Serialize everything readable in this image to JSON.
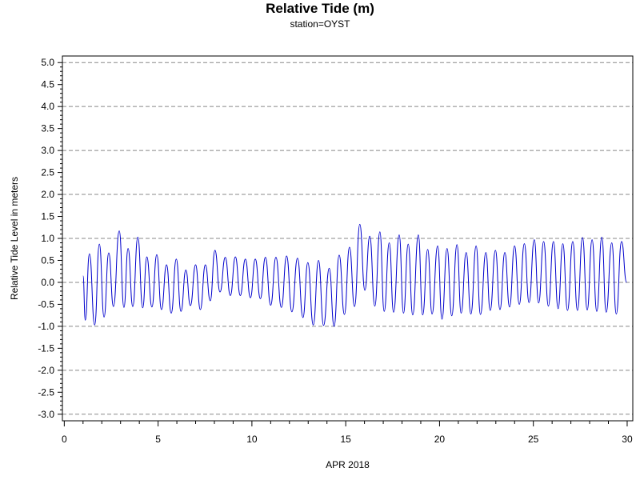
{
  "title": "Relative Tide (m)",
  "subtitle": "station=OYST",
  "chart_data": {
    "type": "line",
    "title": "Relative Tide (m)",
    "subtitle": "station=OYST",
    "xlabel": "APR 2018",
    "ylabel": "Relative Tide Level in meters",
    "xlim": [
      -0.1,
      30.3
    ],
    "ylim": [
      -3.15,
      5.15
    ],
    "x_ticks": [
      0,
      5,
      10,
      15,
      20,
      25,
      30
    ],
    "x_tick_labels": [
      "0",
      "5",
      "10",
      "15",
      "20",
      "25",
      "30"
    ],
    "x_minor_step": 1,
    "y_ticks": [
      5.0,
      4.5,
      4.0,
      3.5,
      3.0,
      2.5,
      2.0,
      1.5,
      1.0,
      0.5,
      0.0,
      -0.5,
      -1.0,
      -1.5,
      -2.0,
      -2.5,
      -3.0
    ],
    "y_tick_labels": [
      "5.0",
      "4.5",
      "4.0",
      "3.5",
      "3.0",
      "2.5",
      "2.0",
      "1.5",
      "1.0",
      "0.5",
      "0.0",
      "-0.5",
      "-1.0",
      "-1.5",
      "-2.0",
      "-2.5",
      "-3.0"
    ],
    "y_minor_step": 0.1,
    "grid": "dashed horizontal at integer levels",
    "line_color": "#0000cc",
    "grid_color": "#888888",
    "series": [
      {
        "points": [
          [
            1.0,
            0.15
          ],
          [
            1.12,
            -0.86
          ],
          [
            1.34,
            0.65
          ],
          [
            1.62,
            -0.97
          ],
          [
            1.87,
            0.87
          ],
          [
            2.12,
            -0.79
          ],
          [
            2.37,
            0.67
          ],
          [
            2.62,
            -0.55
          ],
          [
            2.93,
            1.17
          ],
          [
            3.18,
            -0.57
          ],
          [
            3.4,
            0.77
          ],
          [
            3.65,
            -0.55
          ],
          [
            3.92,
            1.03
          ],
          [
            4.18,
            -0.58
          ],
          [
            4.4,
            0.58
          ],
          [
            4.67,
            -0.56
          ],
          [
            4.93,
            0.63
          ],
          [
            5.18,
            -0.62
          ],
          [
            5.45,
            0.4
          ],
          [
            5.7,
            -0.7
          ],
          [
            5.97,
            0.53
          ],
          [
            6.22,
            -0.66
          ],
          [
            6.48,
            0.28
          ],
          [
            6.72,
            -0.53
          ],
          [
            7.0,
            0.4
          ],
          [
            7.25,
            -0.62
          ],
          [
            7.52,
            0.4
          ],
          [
            7.78,
            -0.42
          ],
          [
            8.03,
            0.73
          ],
          [
            8.3,
            -0.22
          ],
          [
            8.58,
            0.57
          ],
          [
            8.85,
            -0.3
          ],
          [
            9.12,
            0.58
          ],
          [
            9.38,
            -0.3
          ],
          [
            9.65,
            0.53
          ],
          [
            9.92,
            -0.35
          ],
          [
            10.18,
            0.53
          ],
          [
            10.45,
            -0.37
          ],
          [
            10.72,
            0.57
          ],
          [
            11.0,
            -0.52
          ],
          [
            11.28,
            0.57
          ],
          [
            11.57,
            -0.57
          ],
          [
            11.85,
            0.6
          ],
          [
            12.13,
            -0.67
          ],
          [
            12.43,
            0.55
          ],
          [
            12.72,
            -0.8
          ],
          [
            12.98,
            0.45
          ],
          [
            13.27,
            -0.97
          ],
          [
            13.55,
            0.5
          ],
          [
            13.82,
            -0.98
          ],
          [
            14.12,
            0.32
          ],
          [
            14.38,
            -1.0
          ],
          [
            14.65,
            0.62
          ],
          [
            14.93,
            -0.73
          ],
          [
            15.2,
            0.8
          ],
          [
            15.47,
            -0.55
          ],
          [
            15.75,
            1.32
          ],
          [
            16.02,
            -0.18
          ],
          [
            16.28,
            1.05
          ],
          [
            16.55,
            -0.54
          ],
          [
            16.82,
            1.15
          ],
          [
            17.05,
            -0.66
          ],
          [
            17.32,
            0.9
          ],
          [
            17.55,
            -0.68
          ],
          [
            17.85,
            1.08
          ],
          [
            18.08,
            -0.7
          ],
          [
            18.33,
            0.87
          ],
          [
            18.57,
            -0.74
          ],
          [
            18.87,
            1.08
          ],
          [
            19.1,
            -0.74
          ],
          [
            19.37,
            0.75
          ],
          [
            19.6,
            -0.72
          ],
          [
            19.9,
            0.83
          ],
          [
            20.13,
            -0.84
          ],
          [
            20.4,
            0.77
          ],
          [
            20.65,
            -0.76
          ],
          [
            20.93,
            0.86
          ],
          [
            21.15,
            -0.7
          ],
          [
            21.42,
            0.68
          ],
          [
            21.67,
            -0.72
          ],
          [
            21.95,
            0.83
          ],
          [
            22.18,
            -0.73
          ],
          [
            22.47,
            0.68
          ],
          [
            22.7,
            -0.64
          ],
          [
            22.98,
            0.73
          ],
          [
            23.22,
            -0.62
          ],
          [
            23.48,
            0.68
          ],
          [
            23.73,
            -0.56
          ],
          [
            24.0,
            0.83
          ],
          [
            24.25,
            -0.5
          ],
          [
            24.52,
            0.88
          ],
          [
            24.77,
            -0.46
          ],
          [
            25.05,
            0.97
          ],
          [
            25.28,
            -0.47
          ],
          [
            25.55,
            0.93
          ],
          [
            25.8,
            -0.54
          ],
          [
            26.07,
            0.93
          ],
          [
            26.32,
            -0.6
          ],
          [
            26.57,
            0.88
          ],
          [
            26.82,
            -0.64
          ],
          [
            27.1,
            0.93
          ],
          [
            27.35,
            -0.64
          ],
          [
            27.62,
            1.02
          ],
          [
            27.87,
            -0.63
          ],
          [
            28.13,
            0.97
          ],
          [
            28.38,
            -0.66
          ],
          [
            28.65,
            1.03
          ],
          [
            28.88,
            -0.68
          ],
          [
            29.18,
            0.9
          ],
          [
            29.42,
            -0.72
          ],
          [
            29.7,
            0.93
          ],
          [
            29.97,
            0.0
          ]
        ]
      }
    ]
  }
}
